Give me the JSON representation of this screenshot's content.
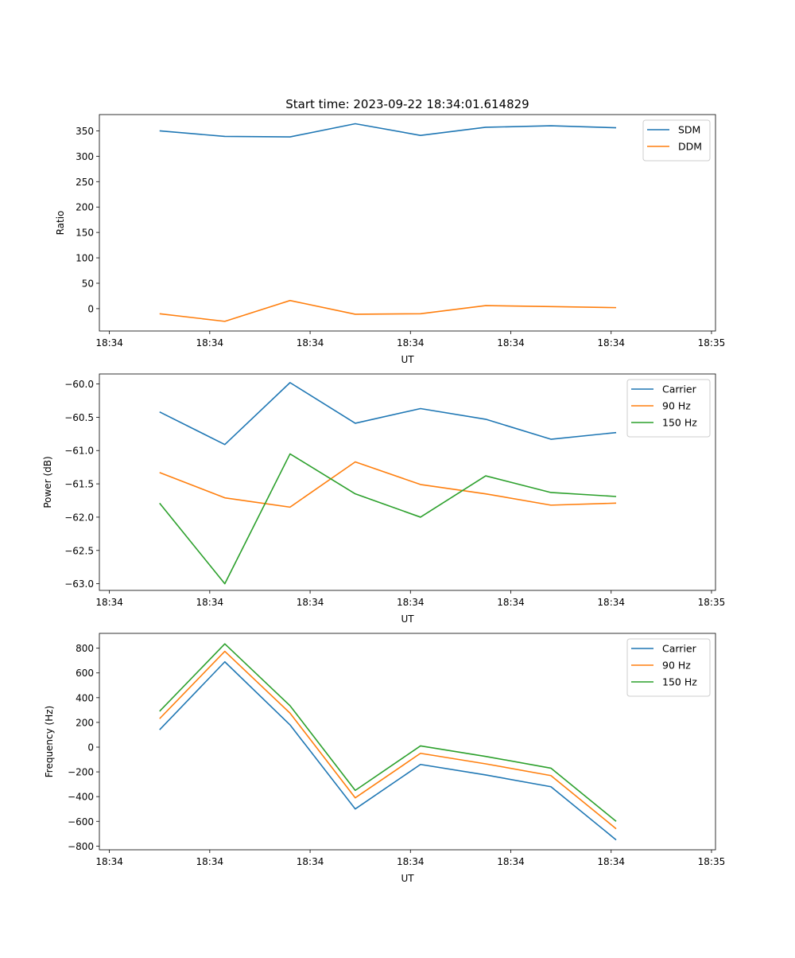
{
  "figure": {
    "title": "Start time: 2023-09-22 18:34:01.614829"
  },
  "colors": {
    "blue": "#1f77b4",
    "orange": "#ff7f0e",
    "green": "#2ca02c"
  },
  "chart_data": [
    {
      "type": "line",
      "title": "Start time: 2023-09-22 18:34:01.614829",
      "xlabel": "UT",
      "ylabel": "Ratio",
      "x": [
        0.5,
        1.15,
        1.8,
        2.45,
        3.1,
        3.75,
        4.4,
        5.05
      ],
      "xlim": [
        -0.1,
        6.04
      ],
      "xticks": [
        0,
        1,
        2,
        3,
        4,
        5,
        6
      ],
      "xticklabels": [
        "18:34",
        "18:34",
        "18:34",
        "18:34",
        "18:34",
        "18:34",
        "18:35"
      ],
      "ylim": [
        -44,
        382
      ],
      "yticks": [
        0,
        50,
        100,
        150,
        200,
        250,
        300,
        350
      ],
      "yticklabels": [
        "0",
        "50",
        "100",
        "150",
        "200",
        "250",
        "300",
        "350"
      ],
      "legend_position": "top-right",
      "series": [
        {
          "name": "SDM",
          "color": "#1f77b4",
          "values": [
            350,
            339,
            338,
            364,
            341,
            357,
            360,
            356
          ]
        },
        {
          "name": "DDM",
          "color": "#ff7f0e",
          "values": [
            -10,
            -25,
            16,
            -11,
            -10,
            6,
            4,
            2
          ]
        }
      ]
    },
    {
      "type": "line",
      "title": "",
      "xlabel": "UT",
      "ylabel": "Power (dB)",
      "x": [
        0.5,
        1.15,
        1.8,
        2.45,
        3.1,
        3.75,
        4.4,
        5.05
      ],
      "xlim": [
        -0.1,
        6.04
      ],
      "xticks": [
        0,
        1,
        2,
        3,
        4,
        5,
        6
      ],
      "xticklabels": [
        "18:34",
        "18:34",
        "18:34",
        "18:34",
        "18:34",
        "18:34",
        "18:35"
      ],
      "ylim": [
        -63.1,
        -59.85
      ],
      "yticks": [
        -63.0,
        -62.5,
        -62.0,
        -61.5,
        -61.0,
        -60.5,
        -60.0
      ],
      "yticklabels": [
        "−63.0",
        "−62.5",
        "−62.0",
        "−61.5",
        "−61.0",
        "−60.5",
        "−60.0"
      ],
      "legend_position": "top-right",
      "series": [
        {
          "name": "Carrier",
          "color": "#1f77b4",
          "values": [
            -60.42,
            -60.91,
            -59.98,
            -60.59,
            -60.37,
            -60.53,
            -60.83,
            -60.73
          ]
        },
        {
          "name": "90 Hz",
          "color": "#ff7f0e",
          "values": [
            -61.33,
            -61.71,
            -61.85,
            -61.17,
            -61.51,
            -61.65,
            -61.82,
            -61.79
          ]
        },
        {
          "name": "150 Hz",
          "color": "#2ca02c",
          "values": [
            -61.79,
            -63.0,
            -61.05,
            -61.65,
            -62.0,
            -61.38,
            -61.63,
            -61.69
          ]
        }
      ]
    },
    {
      "type": "line",
      "title": "",
      "xlabel": "UT",
      "ylabel": "Frequency (Hz)",
      "x": [
        0.5,
        1.15,
        1.8,
        2.45,
        3.1,
        3.75,
        4.4,
        5.05
      ],
      "xlim": [
        -0.1,
        6.04
      ],
      "xticks": [
        0,
        1,
        2,
        3,
        4,
        5,
        6
      ],
      "xticklabels": [
        "18:34",
        "18:34",
        "18:34",
        "18:34",
        "18:34",
        "18:34",
        "18:35"
      ],
      "ylim": [
        -830,
        920
      ],
      "yticks": [
        -800,
        -600,
        -400,
        -200,
        0,
        200,
        400,
        600,
        800
      ],
      "yticklabels": [
        "−800",
        "−600",
        "−400",
        "−200",
        "0",
        "200",
        "400",
        "600",
        "800"
      ],
      "legend_position": "top-right",
      "series": [
        {
          "name": "Carrier",
          "color": "#1f77b4",
          "values": [
            140,
            690,
            180,
            -500,
            -140,
            -225,
            -320,
            -750
          ]
        },
        {
          "name": "90 Hz",
          "color": "#ff7f0e",
          "values": [
            230,
            775,
            275,
            -410,
            -50,
            -135,
            -230,
            -660
          ]
        },
        {
          "name": "150 Hz",
          "color": "#2ca02c",
          "values": [
            290,
            835,
            335,
            -350,
            10,
            -75,
            -170,
            -600
          ]
        }
      ]
    }
  ]
}
